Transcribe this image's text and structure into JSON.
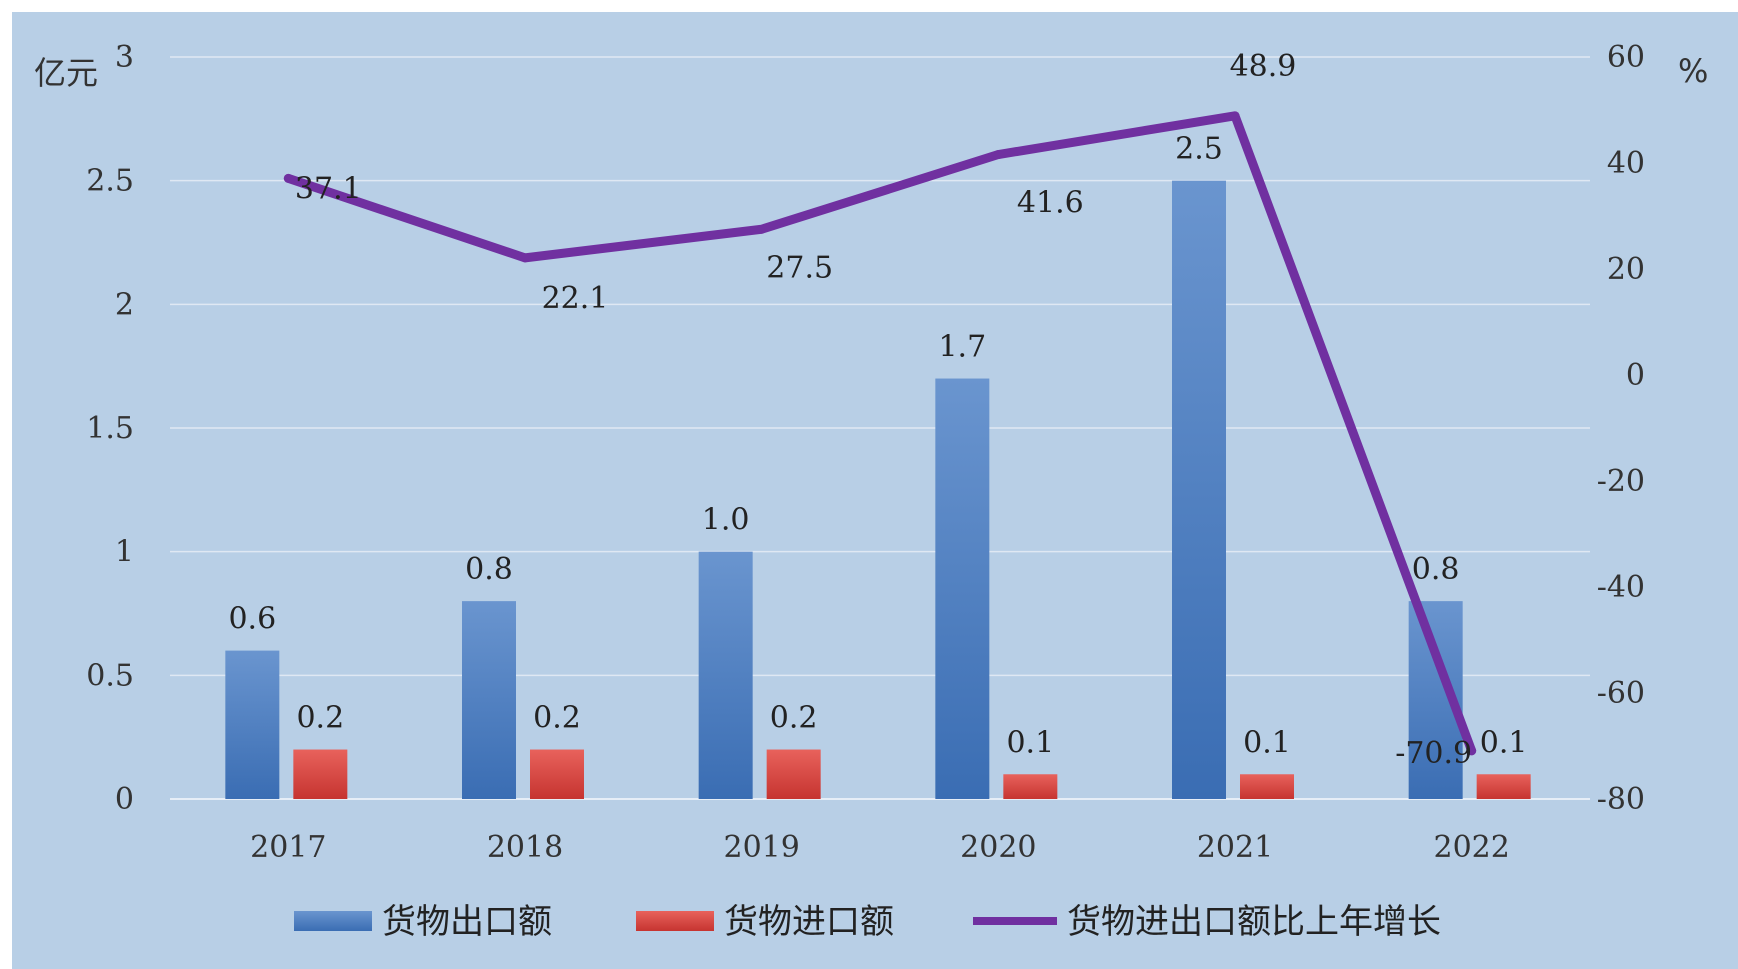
{
  "chart_data": {
    "type": "bar",
    "title": "",
    "categories": [
      "2017",
      "2018",
      "2019",
      "2020",
      "2021",
      "2022"
    ],
    "y_left": {
      "unit": "亿元",
      "ylim": [
        0,
        3
      ],
      "ticks": [
        "0",
        "0.5",
        "1",
        "1.5",
        "2",
        "2.5",
        "3"
      ],
      "tick_values": [
        0,
        0.5,
        1,
        1.5,
        2,
        2.5,
        3
      ]
    },
    "y_right": {
      "unit": "%",
      "ylim": [
        -80,
        60
      ],
      "ticks": [
        "-80",
        "-60",
        "-40",
        "-20",
        "0",
        "20",
        "40",
        "60"
      ],
      "tick_values": [
        -80,
        -60,
        -40,
        -20,
        0,
        20,
        40,
        60
      ]
    },
    "series": [
      {
        "name": "货物出口额",
        "type": "bar",
        "axis": "left",
        "color": "#4a7ec2",
        "values": [
          0.6,
          0.8,
          1.0,
          1.7,
          2.5,
          0.8
        ],
        "labels": [
          "0.6",
          "0.8",
          "1.0",
          "1.7",
          "2.5",
          "0.8"
        ]
      },
      {
        "name": "货物进口额",
        "type": "bar",
        "axis": "left",
        "color": "#d9423e",
        "values": [
          0.2,
          0.2,
          0.2,
          0.1,
          0.1,
          0.1
        ],
        "labels": [
          "0.2",
          "0.2",
          "0.2",
          "0.1",
          "0.1",
          "0.1"
        ]
      },
      {
        "name": "货物进出口额比上年增长",
        "type": "line",
        "axis": "right",
        "color": "#7030a0",
        "values": [
          37.1,
          22.1,
          27.5,
          41.6,
          48.9,
          -70.9
        ],
        "labels": [
          "37.1",
          "22.1",
          "27.5",
          "41.6",
          "48.9",
          "-70.9"
        ]
      }
    ],
    "grid": true,
    "legend_position": "bottom",
    "background_color": "#b8cfe6"
  }
}
